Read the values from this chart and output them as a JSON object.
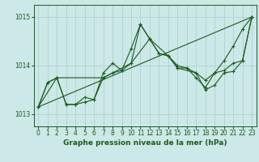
{
  "background_color": "#cce8e8",
  "grid_color": "#aacccc",
  "line_color": "#1a5c1a",
  "title": "Graphe pression niveau de la mer (hPa)",
  "title_fontsize": 6.5,
  "tick_fontsize": 5.5,
  "ylim": [
    1012.75,
    1015.25
  ],
  "xlim": [
    -0.5,
    23.5
  ],
  "yticks": [
    1013,
    1014,
    1015
  ],
  "xticks": [
    0,
    1,
    2,
    3,
    4,
    5,
    6,
    7,
    8,
    9,
    10,
    11,
    12,
    13,
    14,
    15,
    16,
    17,
    18,
    19,
    20,
    21,
    22,
    23
  ],
  "series": [
    {
      "x": [
        0,
        1,
        2,
        3,
        4,
        5,
        6,
        7,
        8,
        9,
        10,
        11,
        12,
        13,
        14,
        15,
        16,
        17,
        18,
        19,
        20,
        21,
        22,
        23
      ],
      "y": [
        1013.15,
        1013.65,
        1013.75,
        1013.2,
        1013.2,
        1013.25,
        1013.3,
        1013.75,
        1013.85,
        1013.9,
        1014.05,
        1014.85,
        1014.55,
        1014.25,
        1014.2,
        1013.95,
        1013.95,
        1013.85,
        1013.7,
        1013.85,
        1013.9,
        1014.05,
        1014.1,
        1015.0
      ],
      "marker": "+"
    },
    {
      "x": [
        0,
        1,
        2,
        3,
        4,
        5,
        6,
        7,
        8,
        9,
        10,
        11,
        12,
        13,
        14,
        15,
        16,
        17,
        18,
        19,
        20,
        21,
        22,
        23
      ],
      "y": [
        1013.15,
        1013.65,
        1013.75,
        1013.2,
        1013.2,
        1013.35,
        1013.3,
        1013.85,
        1014.05,
        1013.9,
        1014.35,
        1014.85,
        1014.55,
        1014.25,
        1014.2,
        1014.0,
        1013.95,
        1013.75,
        1013.55,
        1013.85,
        1014.1,
        1014.4,
        1014.75,
        1015.0
      ],
      "marker": "+"
    },
    {
      "x": [
        0,
        23
      ],
      "y": [
        1013.15,
        1015.0
      ],
      "marker": null
    },
    {
      "x": [
        0,
        2,
        7,
        10,
        12,
        14,
        15,
        17,
        18,
        19,
        20,
        21,
        22,
        23
      ],
      "y": [
        1013.15,
        1013.75,
        1013.75,
        1014.05,
        1014.55,
        1014.2,
        1013.95,
        1013.85,
        1013.5,
        1013.6,
        1013.85,
        1013.88,
        1014.1,
        1015.0
      ],
      "marker": "+"
    }
  ]
}
